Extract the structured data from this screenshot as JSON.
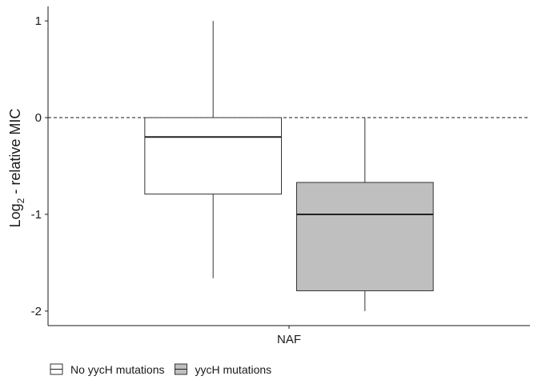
{
  "chart_data": {
    "type": "boxplot",
    "categories": [
      "NAF"
    ],
    "ylabel_main": "Log",
    "ylabel_sub": "2",
    "ylabel_rest": " - relative MIC",
    "xlabel": "",
    "ylim": [
      -2.15,
      1.15
    ],
    "yticks": [
      1,
      0,
      -1,
      -2
    ],
    "yticks_text": [
      "1",
      "0",
      "-1",
      "-2"
    ],
    "reference_line": {
      "y": 0,
      "style": "dashed"
    },
    "grid": false,
    "legend_position": "bottom-left",
    "series": [
      {
        "name": "No yycH mutations",
        "fill": "#ffffff",
        "stroke": "#333333",
        "stats": {
          "min": -1.66,
          "q1": -0.79,
          "median": -0.2,
          "q3": 0.0,
          "max": 1.0
        }
      },
      {
        "name": "yycH mutations",
        "fill": "#bfbfbf",
        "stroke": "#333333",
        "stats": {
          "min": -2.0,
          "q1": -1.79,
          "median": -1.0,
          "q3": -0.67,
          "max": 0.0
        }
      }
    ]
  }
}
